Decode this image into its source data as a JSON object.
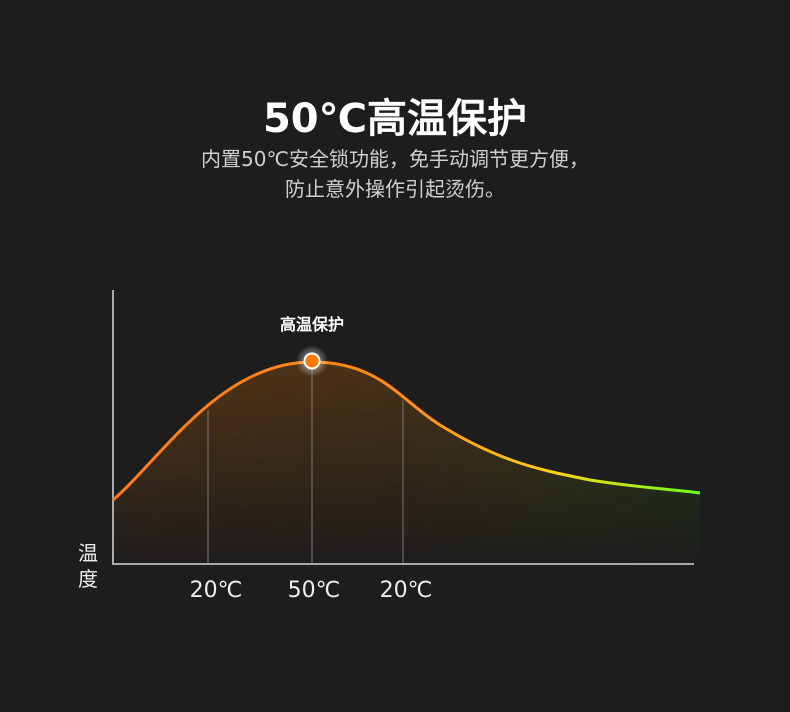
{
  "header": {
    "title": "50℃高温保护",
    "description_lines": [
      "内置50℃安全锁功能，免手动调节更方便，",
      "防止意外操作引起烫伤。"
    ]
  },
  "diagram": {
    "y_axis_label": "温度",
    "x_ticks": [
      "20℃",
      "50℃",
      "20℃"
    ],
    "peak_label": "高温保护",
    "colors": {
      "start": "#ff7a1a",
      "middle": "#ffd21a",
      "end": "#6cff1a",
      "marker": "#ff7a00"
    }
  }
}
